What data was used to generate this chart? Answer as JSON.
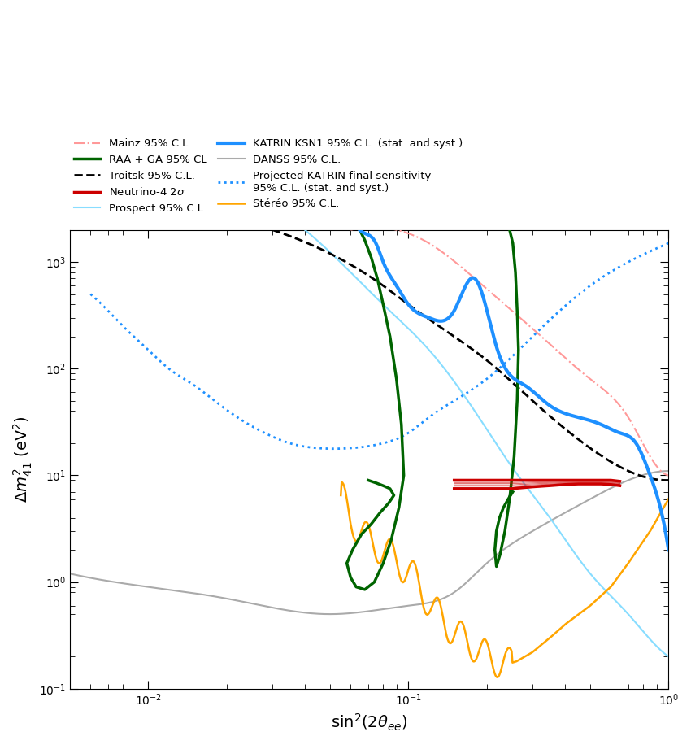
{
  "xlim": [
    0.005,
    1.0
  ],
  "ylim": [
    0.1,
    2000
  ],
  "xlabel": "sin$^2$(2$\\theta_{ee}$)",
  "ylabel": "$\\Delta m^2_{41}$ (eV$^2$)",
  "title": "",
  "legend_entries": [
    {
      "label": "Mainz 95% C.L.",
      "color": "#FF9999",
      "ls": "-.",
      "lw": 1.5
    },
    {
      "label": "RAA + GA 95% CL",
      "color": "#00AA00",
      "ls": "-",
      "lw": 2.5
    },
    {
      "label": "Troitsk 95% C.L.",
      "color": "black",
      "ls": "--",
      "lw": 2.0
    },
    {
      "label": "Neutrino-4 2$\\sigma$",
      "color": "#CC0000",
      "ls": "-",
      "lw": 2.5
    },
    {
      "label": "Prospect 95% C.L.",
      "color": "#88DDFF",
      "ls": "-",
      "lw": 1.5
    },
    {
      "label": "KATRIN KSN1 95% C.L. (stat. and syst.)",
      "color": "#1E90FF",
      "ls": "-",
      "lw": 3.0
    },
    {
      "label": "DANSS 95% C.L.",
      "color": "#AAAAAA",
      "ls": "-",
      "lw": 1.5
    },
    {
      "label": "Projected KATRIN final sensitivity\n95% C.L. (stat. and syst.)",
      "color": "#1E90FF",
      "ls": ":",
      "lw": 2.0
    },
    {
      "label": "Stéréo 95% C.L.",
      "color": "#FFA500",
      "ls": "-",
      "lw": 1.8
    }
  ],
  "background_color": "#FFFFFF"
}
